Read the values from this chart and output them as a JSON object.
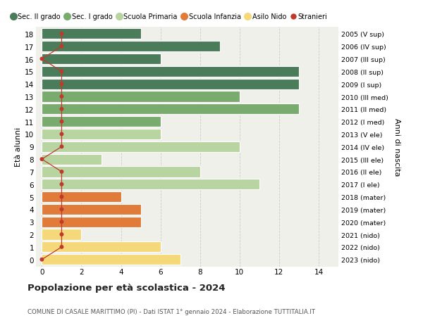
{
  "ages": [
    18,
    17,
    16,
    15,
    14,
    13,
    12,
    11,
    10,
    9,
    8,
    7,
    6,
    5,
    4,
    3,
    2,
    1,
    0
  ],
  "right_labels": [
    "2005 (V sup)",
    "2006 (IV sup)",
    "2007 (III sup)",
    "2008 (II sup)",
    "2009 (I sup)",
    "2010 (III med)",
    "2011 (II med)",
    "2012 (I med)",
    "2013 (V ele)",
    "2014 (IV ele)",
    "2015 (III ele)",
    "2016 (II ele)",
    "2017 (I ele)",
    "2018 (mater)",
    "2019 (mater)",
    "2020 (mater)",
    "2021 (nido)",
    "2022 (nido)",
    "2023 (nido)"
  ],
  "bar_values": [
    5,
    9,
    6,
    13,
    13,
    10,
    13,
    6,
    6,
    10,
    3,
    8,
    11,
    4,
    5,
    5,
    2,
    6,
    7
  ],
  "bar_colors": [
    "#4a7c59",
    "#4a7c59",
    "#4a7c59",
    "#4a7c59",
    "#4a7c59",
    "#7aab6e",
    "#7aab6e",
    "#7aab6e",
    "#b8d4a0",
    "#b8d4a0",
    "#b8d4a0",
    "#b8d4a0",
    "#b8d4a0",
    "#e07b39",
    "#e07b39",
    "#e07b39",
    "#f5d87a",
    "#f5d87a",
    "#f5d87a"
  ],
  "stranieri_values": [
    1,
    1,
    0,
    1,
    1,
    1,
    1,
    1,
    1,
    1,
    0,
    1,
    1,
    1,
    1,
    1,
    1,
    1,
    0
  ],
  "legend_labels": [
    "Sec. II grado",
    "Sec. I grado",
    "Scuola Primaria",
    "Scuola Infanzia",
    "Asilo Nido",
    "Stranieri"
  ],
  "legend_colors": [
    "#4a7c59",
    "#7aab6e",
    "#b8d4a0",
    "#e07b39",
    "#f5d87a",
    "#c0392b"
  ],
  "title": "Popolazione per età scolastica - 2024",
  "subtitle": "COMUNE DI CASALE MARITTIMO (PI) - Dati ISTAT 1° gennaio 2024 - Elaborazione TUTTITALIA.IT",
  "ylabel": "Età alunni",
  "right_ylabel": "Anni di nascita",
  "xlabel_vals": [
    0,
    2,
    4,
    6,
    8,
    10,
    12,
    14
  ],
  "xlim": [
    -0.3,
    15
  ],
  "ylim_min": -0.55,
  "ylim_max": 18.55,
  "background_color": "#ffffff",
  "bar_background_color": "#f0f0eb",
  "grid_color": "#cccccc"
}
